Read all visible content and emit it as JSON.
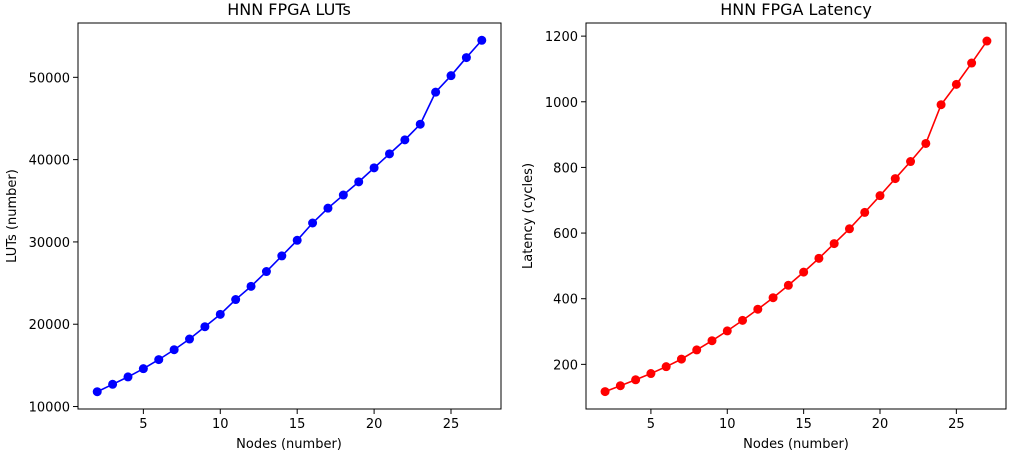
{
  "chart_data": [
    {
      "type": "line",
      "title": "HNN FPGA LUTs",
      "xlabel": "Nodes (number)",
      "ylabel": "LUTs (number)",
      "xlim": [
        0.75,
        28.25
      ],
      "ylim": [
        9700,
        56600
      ],
      "xticks": [
        5,
        10,
        15,
        20,
        25
      ],
      "yticks": [
        10000,
        20000,
        30000,
        40000,
        50000
      ],
      "grid": false,
      "color": "#0000ff",
      "x": [
        2,
        3,
        4,
        5,
        6,
        7,
        8,
        9,
        10,
        11,
        12,
        13,
        14,
        15,
        16,
        17,
        18,
        19,
        20,
        21,
        22,
        23,
        24,
        25,
        26,
        27
      ],
      "values": [
        11800,
        12700,
        13600,
        14600,
        15700,
        16900,
        18200,
        19700,
        21200,
        23000,
        24600,
        26400,
        28300,
        30200,
        32300,
        34100,
        35700,
        37300,
        39000,
        40700,
        42400,
        44300,
        48200,
        50200,
        52400,
        54500
      ]
    },
    {
      "type": "line",
      "title": "HNN FPGA Latency",
      "xlabel": "Nodes (number)",
      "ylabel": "Latency (cycles)",
      "xlim": [
        0.75,
        28.25
      ],
      "ylim": [
        64,
        1240
      ],
      "xticks": [
        5,
        10,
        15,
        20,
        25
      ],
      "yticks": [
        200,
        400,
        600,
        800,
        1000,
        1200
      ],
      "grid": false,
      "color": "#ff0000",
      "x": [
        2,
        3,
        4,
        5,
        6,
        7,
        8,
        9,
        10,
        11,
        12,
        13,
        14,
        15,
        16,
        17,
        18,
        19,
        20,
        21,
        22,
        23,
        24,
        25,
        26,
        27
      ],
      "values": [
        117,
        135,
        153,
        172,
        193,
        216,
        244,
        272,
        302,
        334,
        368,
        403,
        441,
        481,
        523,
        568,
        613,
        663,
        714,
        766,
        818,
        873,
        991,
        1053,
        1118,
        1185
      ]
    }
  ]
}
